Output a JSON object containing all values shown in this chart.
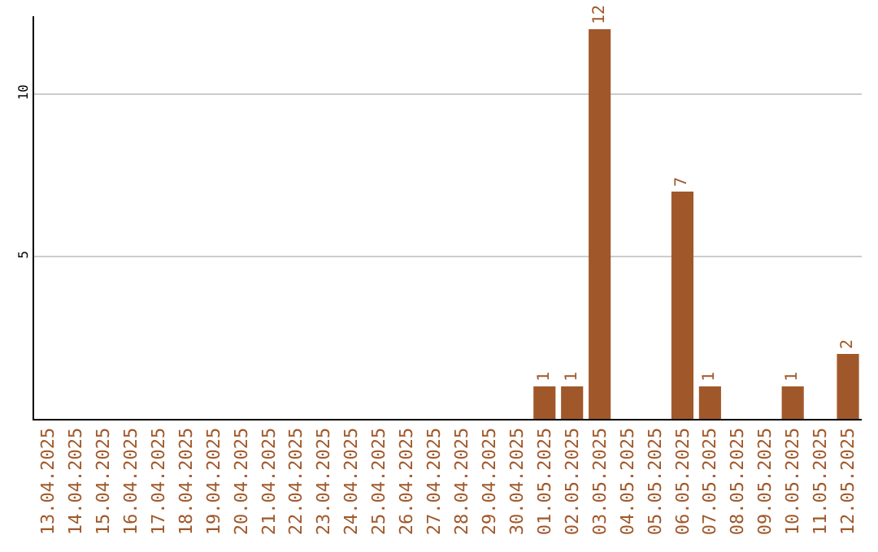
{
  "chart_data": {
    "type": "bar",
    "categories": [
      "13.04.2025",
      "14.04.2025",
      "15.04.2025",
      "16.04.2025",
      "17.04.2025",
      "18.04.2025",
      "19.04.2025",
      "20.04.2025",
      "21.04.2025",
      "22.04.2025",
      "23.04.2025",
      "24.04.2025",
      "25.04.2025",
      "26.04.2025",
      "27.04.2025",
      "28.04.2025",
      "29.04.2025",
      "30.04.2025",
      "01.05.2025",
      "02.05.2025",
      "03.05.2025",
      "04.05.2025",
      "05.05.2025",
      "06.05.2025",
      "07.05.2025",
      "08.05.2025",
      "09.05.2025",
      "10.05.2025",
      "11.05.2025",
      "12.05.2025"
    ],
    "values": [
      0,
      0,
      0,
      0,
      0,
      0,
      0,
      0,
      0,
      0,
      0,
      0,
      0,
      0,
      0,
      0,
      0,
      0,
      1,
      1,
      12,
      0,
      0,
      7,
      1,
      0,
      0,
      1,
      0,
      2
    ],
    "value_labels": [
      null,
      null,
      null,
      null,
      null,
      null,
      null,
      null,
      null,
      null,
      null,
      null,
      null,
      null,
      null,
      null,
      null,
      null,
      "1",
      "1",
      "12",
      null,
      null,
      "7",
      "1",
      null,
      null,
      "1",
      null,
      "2"
    ],
    "color": "#a0582a",
    "ylim": [
      0,
      12.4
    ],
    "yticks": [
      5,
      10
    ],
    "grid": "y",
    "legend": false
  }
}
